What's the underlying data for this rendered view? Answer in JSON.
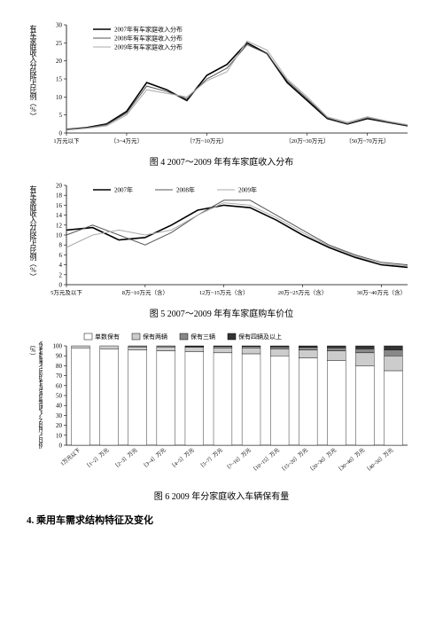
{
  "chart1": {
    "type": "line",
    "ylabel": "有车家庭收入分段所占比例（%）",
    "yticks": [
      0,
      5,
      10,
      15,
      20,
      25,
      30
    ],
    "ylim": [
      0,
      30
    ],
    "xticks": [
      "1万元以下",
      "〔3~4万元〕",
      "〔7万~10万元〕",
      "〔20万~30万元〕",
      "〔50万~70万元〕"
    ],
    "xtick_positions": [
      0,
      3,
      7,
      12,
      15
    ],
    "series": [
      {
        "name": "2007年有车家庭收入分布",
        "color": "#000000",
        "width": 1.6,
        "values": [
          1,
          1.5,
          2.5,
          6,
          14,
          12,
          9,
          16,
          19,
          25,
          22,
          14,
          9,
          4,
          2.5,
          4,
          3,
          2
        ]
      },
      {
        "name": "2008年有车家庭收入分布",
        "color": "#555555",
        "width": 1.0,
        "values": [
          1,
          1.4,
          2.3,
          5.5,
          13,
          11.5,
          9.5,
          15,
          18,
          24.5,
          22,
          14.5,
          9.5,
          4.2,
          2.6,
          4.2,
          3.1,
          2.1
        ]
      },
      {
        "name": "2009年有车家庭收入分布",
        "color": "#aaaaaa",
        "width": 1.0,
        "values": [
          0.8,
          1.3,
          2,
          5,
          12,
          11,
          10,
          14.5,
          17,
          25.5,
          23,
          15,
          10,
          4.5,
          3,
          4.5,
          3.3,
          2.3
        ]
      }
    ],
    "caption": "图 4 2007～2009 年有车家庭收入分布"
  },
  "chart2": {
    "type": "line",
    "ylabel": "有车家庭收入分段所占比例（%）",
    "yticks": [
      0,
      2,
      4,
      6,
      8,
      10,
      12,
      14,
      16,
      18,
      20
    ],
    "ylim": [
      0,
      20
    ],
    "xticks": [
      "5万元及以下",
      "8万~10万元（含）",
      "12万~15万元（含）",
      "20万~25万元（含）",
      "30万~40万元（含）"
    ],
    "xtick_positions": [
      0,
      3,
      6,
      9,
      12
    ],
    "series": [
      {
        "name": "2007年",
        "color": "#000000",
        "width": 1.6,
        "values": [
          11,
          11.5,
          9,
          9.5,
          12,
          15,
          16,
          15.5,
          13,
          10,
          7.5,
          5.5,
          4,
          3.5
        ]
      },
      {
        "name": "2008年",
        "color": "#555555",
        "width": 1.0,
        "values": [
          10,
          12,
          10,
          8,
          10.5,
          14,
          17,
          17,
          14,
          11,
          8,
          6,
          4.5,
          4
        ]
      },
      {
        "name": "2009年",
        "color": "#aaaaaa",
        "width": 1.0,
        "values": [
          7.5,
          10,
          11,
          10,
          11,
          14,
          16.5,
          16,
          13.5,
          10.5,
          7.8,
          5.8,
          4.2,
          3.8
        ]
      }
    ],
    "caption": "图 5 2007～2009 年有车家庭购车价位"
  },
  "chart3": {
    "type": "stacked-bar",
    "ylabel": "保有数量不同的有车家庭按收入分段所占比例（%）",
    "yticks": [
      0,
      10,
      20,
      30,
      40,
      50,
      60,
      70,
      80,
      90,
      100
    ],
    "ylim": [
      0,
      100
    ],
    "legend": [
      {
        "name": "单数保有",
        "color": "#ffffff",
        "border": "#000"
      },
      {
        "name": "保有两辆",
        "color": "#cccccc",
        "border": "#000"
      },
      {
        "name": "保有三辆",
        "color": "#888888",
        "border": "#000"
      },
      {
        "name": "保有四辆及以上",
        "color": "#333333",
        "border": "#000"
      }
    ],
    "categories": [
      "1万元以下",
      "〔1~2〕万元",
      "〔2~3〕万元",
      "〔3~4〕万元",
      "〔4~5〕万元",
      "〔5~7〕万元",
      "〔7~10〕万元",
      "〔10~15〕万元",
      "〔15~20〕万元",
      "〔20~30〕万元",
      "〔30~40〕万元",
      "〔40~50〕万元"
    ],
    "stacks": [
      [
        98,
        2,
        0,
        0
      ],
      [
        97,
        3,
        0,
        0
      ],
      [
        96,
        3,
        1,
        0
      ],
      [
        95,
        4,
        1,
        0
      ],
      [
        94,
        4.5,
        1,
        0.5
      ],
      [
        93,
        5,
        1.5,
        0.5
      ],
      [
        92,
        6,
        1.5,
        0.5
      ],
      [
        90,
        7,
        2,
        1
      ],
      [
        88,
        8,
        2.5,
        1.5
      ],
      [
        85,
        10,
        3,
        2
      ],
      [
        80,
        13,
        4,
        3
      ],
      [
        75,
        15,
        6,
        4
      ]
    ],
    "caption": "图 6 2009 年分家庭收入车辆保有量"
  },
  "heading": "4. 乘用车需求结构特征及变化"
}
